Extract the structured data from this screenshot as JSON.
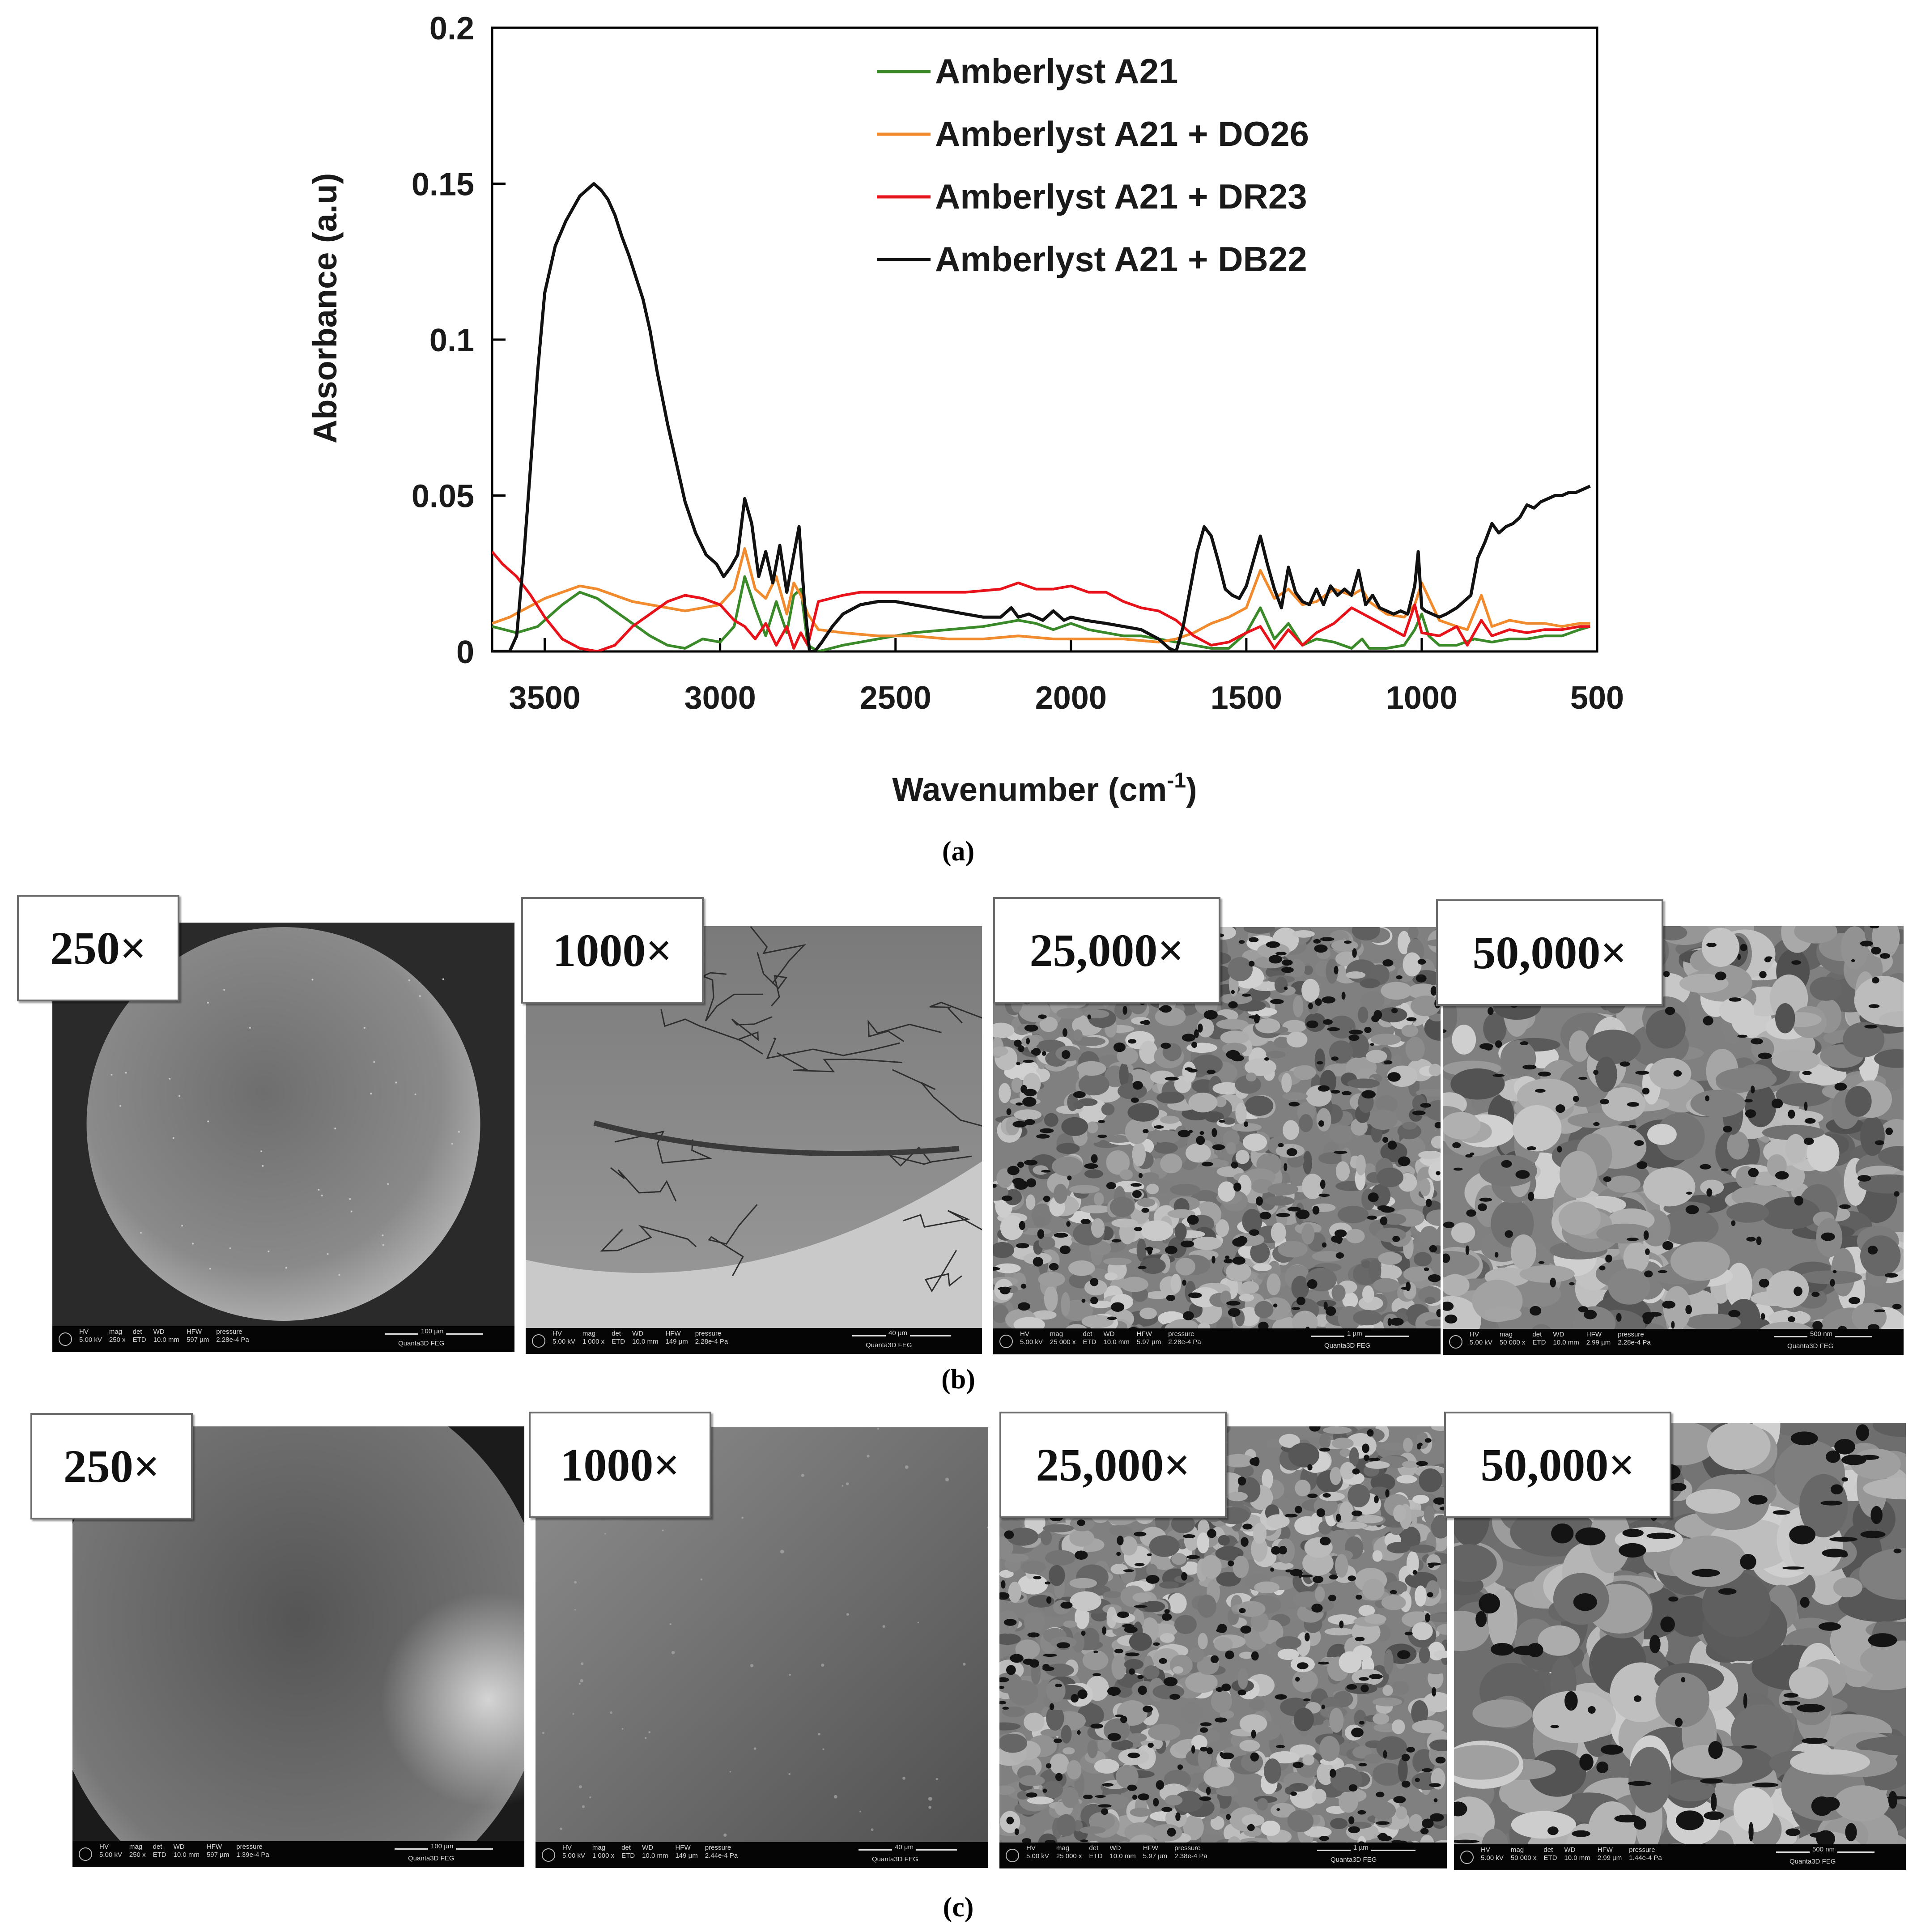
{
  "panel_a": {
    "caption": "(a)",
    "xlabel": "Wavenumber  (cm",
    "xlabel_sup": "-1",
    "xlabel_end": ")",
    "ylabel": "Absorbance (a.u)"
  },
  "chart_data": {
    "type": "line",
    "xlabel": "Wavenumber (cm-1)",
    "ylabel": "Absorbance (a.u)",
    "xlim": [
      3650,
      500
    ],
    "ylim": [
      0,
      0.2
    ],
    "x_reversed": true,
    "x_ticks": [
      3500,
      3000,
      2500,
      2000,
      1500,
      1000,
      500
    ],
    "y_ticks": [
      0,
      0.05,
      0.1,
      0.15,
      0.2
    ],
    "y_tick_labels": [
      "0",
      "0.05",
      "0.1",
      "0.15",
      "0.2"
    ],
    "grid": false,
    "legend_position": "top-right",
    "series": [
      {
        "name": "Amberlyst A21",
        "color": "#3a8a2a",
        "x": [
          3650,
          3580,
          3520,
          3450,
          3400,
          3350,
          3300,
          3250,
          3200,
          3150,
          3100,
          3050,
          3000,
          2960,
          2930,
          2900,
          2870,
          2840,
          2810,
          2790,
          2770,
          2750,
          2720,
          2650,
          2550,
          2450,
          2350,
          2250,
          2150,
          2100,
          2050,
          2000,
          1950,
          1900,
          1850,
          1800,
          1750,
          1700,
          1650,
          1600,
          1550,
          1500,
          1460,
          1420,
          1380,
          1340,
          1300,
          1250,
          1200,
          1170,
          1150,
          1100,
          1050,
          1020,
          1000,
          980,
          950,
          900,
          850,
          800,
          750,
          700,
          650,
          600,
          550,
          520
        ],
        "y": [
          0.008,
          0.006,
          0.008,
          0.015,
          0.019,
          0.017,
          0.013,
          0.009,
          0.005,
          0.002,
          0.001,
          0.004,
          0.003,
          0.008,
          0.024,
          0.014,
          0.005,
          0.016,
          0.006,
          0.018,
          0.02,
          0.002,
          0.0,
          0.002,
          0.004,
          0.006,
          0.007,
          0.008,
          0.01,
          0.009,
          0.007,
          0.009,
          0.007,
          0.006,
          0.005,
          0.005,
          0.004,
          0.003,
          0.002,
          0.001,
          0.001,
          0.006,
          0.014,
          0.004,
          0.009,
          0.002,
          0.004,
          0.003,
          0.001,
          0.004,
          0.001,
          0.001,
          0.002,
          0.007,
          0.012,
          0.005,
          0.002,
          0.002,
          0.004,
          0.003,
          0.004,
          0.004,
          0.005,
          0.005,
          0.007,
          0.008
        ]
      },
      {
        "name": "Amberlyst A21 + DO26",
        "color": "#f28a2e",
        "x": [
          3650,
          3600,
          3550,
          3500,
          3450,
          3400,
          3350,
          3300,
          3250,
          3200,
          3150,
          3100,
          3050,
          3000,
          2960,
          2930,
          2900,
          2870,
          2840,
          2810,
          2790,
          2770,
          2750,
          2720,
          2650,
          2550,
          2450,
          2350,
          2250,
          2150,
          2050,
          1950,
          1850,
          1750,
          1700,
          1650,
          1600,
          1550,
          1500,
          1460,
          1420,
          1380,
          1340,
          1300,
          1250,
          1200,
          1170,
          1150,
          1100,
          1050,
          1020,
          1000,
          950,
          900,
          870,
          830,
          800,
          750,
          700,
          650,
          600,
          550,
          520
        ],
        "y": [
          0.009,
          0.011,
          0.014,
          0.017,
          0.019,
          0.021,
          0.02,
          0.018,
          0.016,
          0.015,
          0.014,
          0.013,
          0.014,
          0.015,
          0.02,
          0.033,
          0.02,
          0.017,
          0.024,
          0.012,
          0.022,
          0.018,
          0.012,
          0.007,
          0.006,
          0.005,
          0.005,
          0.004,
          0.004,
          0.005,
          0.004,
          0.004,
          0.004,
          0.003,
          0.004,
          0.006,
          0.009,
          0.011,
          0.014,
          0.026,
          0.017,
          0.02,
          0.015,
          0.016,
          0.02,
          0.018,
          0.02,
          0.016,
          0.012,
          0.011,
          0.015,
          0.022,
          0.01,
          0.008,
          0.007,
          0.018,
          0.008,
          0.01,
          0.009,
          0.009,
          0.008,
          0.009,
          0.009
        ]
      },
      {
        "name": "Amberlyst A21 + DR23",
        "color": "#e8121a",
        "x": [
          3650,
          3620,
          3580,
          3540,
          3500,
          3450,
          3400,
          3350,
          3300,
          3250,
          3200,
          3150,
          3100,
          3050,
          3000,
          2960,
          2930,
          2900,
          2870,
          2840,
          2810,
          2790,
          2770,
          2750,
          2720,
          2650,
          2600,
          2500,
          2400,
          2300,
          2200,
          2150,
          2100,
          2050,
          2000,
          1950,
          1900,
          1850,
          1800,
          1750,
          1700,
          1650,
          1600,
          1550,
          1500,
          1460,
          1420,
          1380,
          1340,
          1300,
          1250,
          1200,
          1150,
          1100,
          1050,
          1020,
          1000,
          950,
          900,
          870,
          830,
          800,
          750,
          700,
          650,
          600,
          550,
          520
        ],
        "y": [
          0.032,
          0.028,
          0.024,
          0.018,
          0.011,
          0.004,
          0.001,
          0.0,
          0.002,
          0.008,
          0.012,
          0.016,
          0.018,
          0.017,
          0.015,
          0.01,
          0.008,
          0.004,
          0.009,
          0.002,
          0.008,
          0.001,
          0.006,
          0.002,
          0.016,
          0.018,
          0.019,
          0.019,
          0.019,
          0.019,
          0.02,
          0.022,
          0.02,
          0.02,
          0.021,
          0.019,
          0.019,
          0.016,
          0.014,
          0.013,
          0.01,
          0.005,
          0.002,
          0.003,
          0.006,
          0.008,
          0.001,
          0.007,
          0.002,
          0.006,
          0.009,
          0.014,
          0.011,
          0.008,
          0.005,
          0.015,
          0.006,
          0.005,
          0.008,
          0.002,
          0.01,
          0.005,
          0.007,
          0.006,
          0.007,
          0.007,
          0.008,
          0.008
        ]
      },
      {
        "name": "Amberlyst A21 + DB22",
        "color": "#111111",
        "x": [
          3650,
          3620,
          3600,
          3580,
          3560,
          3540,
          3520,
          3500,
          3470,
          3440,
          3420,
          3400,
          3380,
          3360,
          3340,
          3320,
          3300,
          3280,
          3260,
          3240,
          3220,
          3200,
          3180,
          3150,
          3120,
          3100,
          3070,
          3040,
          3010,
          2990,
          2970,
          2950,
          2930,
          2910,
          2890,
          2870,
          2850,
          2830,
          2810,
          2790,
          2775,
          2760,
          2745,
          2730,
          2710,
          2680,
          2650,
          2600,
          2550,
          2500,
          2450,
          2400,
          2350,
          2300,
          2250,
          2200,
          2170,
          2150,
          2120,
          2080,
          2050,
          2020,
          2000,
          1960,
          1900,
          1850,
          1800,
          1750,
          1720,
          1700,
          1680,
          1660,
          1640,
          1620,
          1600,
          1580,
          1560,
          1540,
          1520,
          1500,
          1480,
          1460,
          1440,
          1420,
          1400,
          1380,
          1360,
          1340,
          1320,
          1300,
          1280,
          1260,
          1240,
          1220,
          1200,
          1180,
          1160,
          1140,
          1120,
          1100,
          1080,
          1060,
          1040,
          1020,
          1010,
          1000,
          990,
          970,
          950,
          930,
          900,
          880,
          860,
          840,
          820,
          800,
          780,
          760,
          740,
          720,
          700,
          680,
          660,
          640,
          620,
          600,
          580,
          560,
          540,
          520
        ],
        "y": [
          0.0,
          0.0,
          0.0,
          0.005,
          0.03,
          0.06,
          0.09,
          0.115,
          0.13,
          0.138,
          0.142,
          0.146,
          0.148,
          0.15,
          0.148,
          0.145,
          0.14,
          0.133,
          0.127,
          0.12,
          0.113,
          0.103,
          0.09,
          0.073,
          0.058,
          0.048,
          0.038,
          0.031,
          0.028,
          0.024,
          0.027,
          0.031,
          0.049,
          0.041,
          0.024,
          0.032,
          0.022,
          0.034,
          0.019,
          0.031,
          0.04,
          0.016,
          0.0,
          0.0,
          0.003,
          0.008,
          0.012,
          0.015,
          0.016,
          0.016,
          0.015,
          0.014,
          0.013,
          0.012,
          0.011,
          0.011,
          0.014,
          0.011,
          0.012,
          0.01,
          0.013,
          0.01,
          0.011,
          0.01,
          0.009,
          0.008,
          0.007,
          0.004,
          0.001,
          0.0,
          0.008,
          0.02,
          0.032,
          0.04,
          0.037,
          0.029,
          0.02,
          0.018,
          0.017,
          0.021,
          0.029,
          0.037,
          0.028,
          0.02,
          0.014,
          0.027,
          0.019,
          0.016,
          0.015,
          0.02,
          0.015,
          0.021,
          0.018,
          0.02,
          0.018,
          0.026,
          0.015,
          0.018,
          0.014,
          0.013,
          0.012,
          0.013,
          0.012,
          0.021,
          0.032,
          0.014,
          0.013,
          0.012,
          0.011,
          0.012,
          0.014,
          0.016,
          0.018,
          0.03,
          0.035,
          0.041,
          0.038,
          0.04,
          0.041,
          0.043,
          0.047,
          0.046,
          0.048,
          0.049,
          0.05,
          0.05,
          0.051,
          0.051,
          0.052,
          0.053
        ]
      }
    ]
  },
  "panel_b": {
    "caption": "(b)",
    "images": [
      {
        "mag": "250×",
        "bar": {
          "hv": "5.00 kV",
          "mag": "250 x",
          "det": "ETD",
          "wd": "10.0 mm",
          "hfw": "597 µm",
          "pressure": "2.28e-4 Pa",
          "scale": "100 µm",
          "instrument": "Quanta3D FEG"
        }
      },
      {
        "mag": "1000×",
        "bar": {
          "hv": "5.00 kV",
          "mag": "1 000 x",
          "det": "ETD",
          "wd": "10.0 mm",
          "hfw": "149 µm",
          "pressure": "2.28e-4 Pa",
          "scale": "40 µm",
          "instrument": "Quanta3D FEG"
        }
      },
      {
        "mag": "25,000×",
        "bar": {
          "hv": "5.00 kV",
          "mag": "25 000 x",
          "det": "ETD",
          "wd": "10.0 mm",
          "hfw": "5.97 µm",
          "pressure": "2.28e-4 Pa",
          "scale": "1 µm",
          "instrument": "Quanta3D FEG"
        }
      },
      {
        "mag": "50,000×",
        "bar": {
          "hv": "5.00 kV",
          "mag": "50 000 x",
          "det": "ETD",
          "wd": "10.0 mm",
          "hfw": "2.99 µm",
          "pressure": "2.28e-4 Pa",
          "scale": "500 nm",
          "instrument": "Quanta3D FEG"
        }
      }
    ]
  },
  "panel_c": {
    "caption": "(c)",
    "images": [
      {
        "mag": "250×",
        "bar": {
          "hv": "5.00 kV",
          "mag": "250 x",
          "det": "ETD",
          "wd": "10.0 mm",
          "hfw": "597 µm",
          "pressure": "1.39e-4 Pa",
          "scale": "100 µm",
          "instrument": "Quanta3D FEG"
        }
      },
      {
        "mag": "1000×",
        "bar": {
          "hv": "5.00 kV",
          "mag": "1 000 x",
          "det": "ETD",
          "wd": "10.0 mm",
          "hfw": "149 µm",
          "pressure": "2.44e-4 Pa",
          "scale": "40 µm",
          "instrument": "Quanta3D FEG"
        }
      },
      {
        "mag": "25,000×",
        "bar": {
          "hv": "5.00 kV",
          "mag": "25 000 x",
          "det": "ETD",
          "wd": "10.0 mm",
          "hfw": "5.97 µm",
          "pressure": "2.38e-4 Pa",
          "scale": "1 µm",
          "instrument": "Quanta3D FEG"
        }
      },
      {
        "mag": "50,000×",
        "bar": {
          "hv": "5.00 kV",
          "mag": "50 000 x",
          "det": "ETD",
          "wd": "10.0 mm",
          "hfw": "2.99 µm",
          "pressure": "1.44e-4 Pa",
          "scale": "500 nm",
          "instrument": "Quanta3D FEG"
        }
      }
    ]
  },
  "info_bar_headers": [
    "HV",
    "mag",
    "det",
    "WD",
    "HFW",
    "pressure"
  ]
}
